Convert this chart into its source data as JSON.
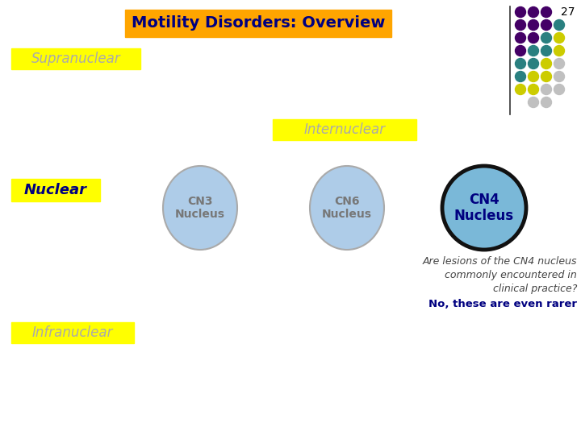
{
  "title": "Motility Disorders: Overview",
  "title_bg": "#FFA500",
  "title_color": "#000080",
  "bg_color": "#FFFFFF",
  "slide_number": "27",
  "labels": {
    "supranuclear": "Supranuclear",
    "internuclear": "Internuclear",
    "nuclear": "Nuclear",
    "infranuclear": "Infranuclear",
    "cn3": "CN3\nNucleus",
    "cn6": "CN6\nNucleus",
    "cn4": "CN4\nNucleus"
  },
  "label_bg": "#FFFF00",
  "label_text_color_gray": "#AAAAAA",
  "label_text_color_dark": "#000080",
  "circle_fill_light": "#AECCE8",
  "circle_fill_highlight": "#7AB8D8",
  "circle_edge_light": "#AAAAAA",
  "circle_edge_highlight": "#111111",
  "annotation_line1": "Are lesions of the CN4 nucleus",
  "annotation_line2": "commonly encountered in",
  "annotation_line3": "clinical practice?",
  "annotation_bold": "No, these are even rarer",
  "annotation_italic_color": "#444444",
  "annotation_bold_color": "#000080",
  "dot_grid": [
    [
      "#440066",
      "#440066",
      "#440066",
      "none"
    ],
    [
      "#440066",
      "#440066",
      "#440066",
      "#2A8080"
    ],
    [
      "#440066",
      "#440066",
      "#2A8080",
      "#CCCC00"
    ],
    [
      "#440066",
      "#2A8080",
      "#2A8080",
      "#CCCC00"
    ],
    [
      "#2A8080",
      "#2A8080",
      "#CCCC00",
      "#C0C0C0"
    ],
    [
      "#2A8080",
      "#CCCC00",
      "#CCCC00",
      "#C0C0C0"
    ],
    [
      "#CCCC00",
      "#CCCC00",
      "#C0C0C0",
      "#C0C0C0"
    ],
    [
      "none",
      "#C0C0C0",
      "#C0C0C0",
      "none"
    ]
  ]
}
